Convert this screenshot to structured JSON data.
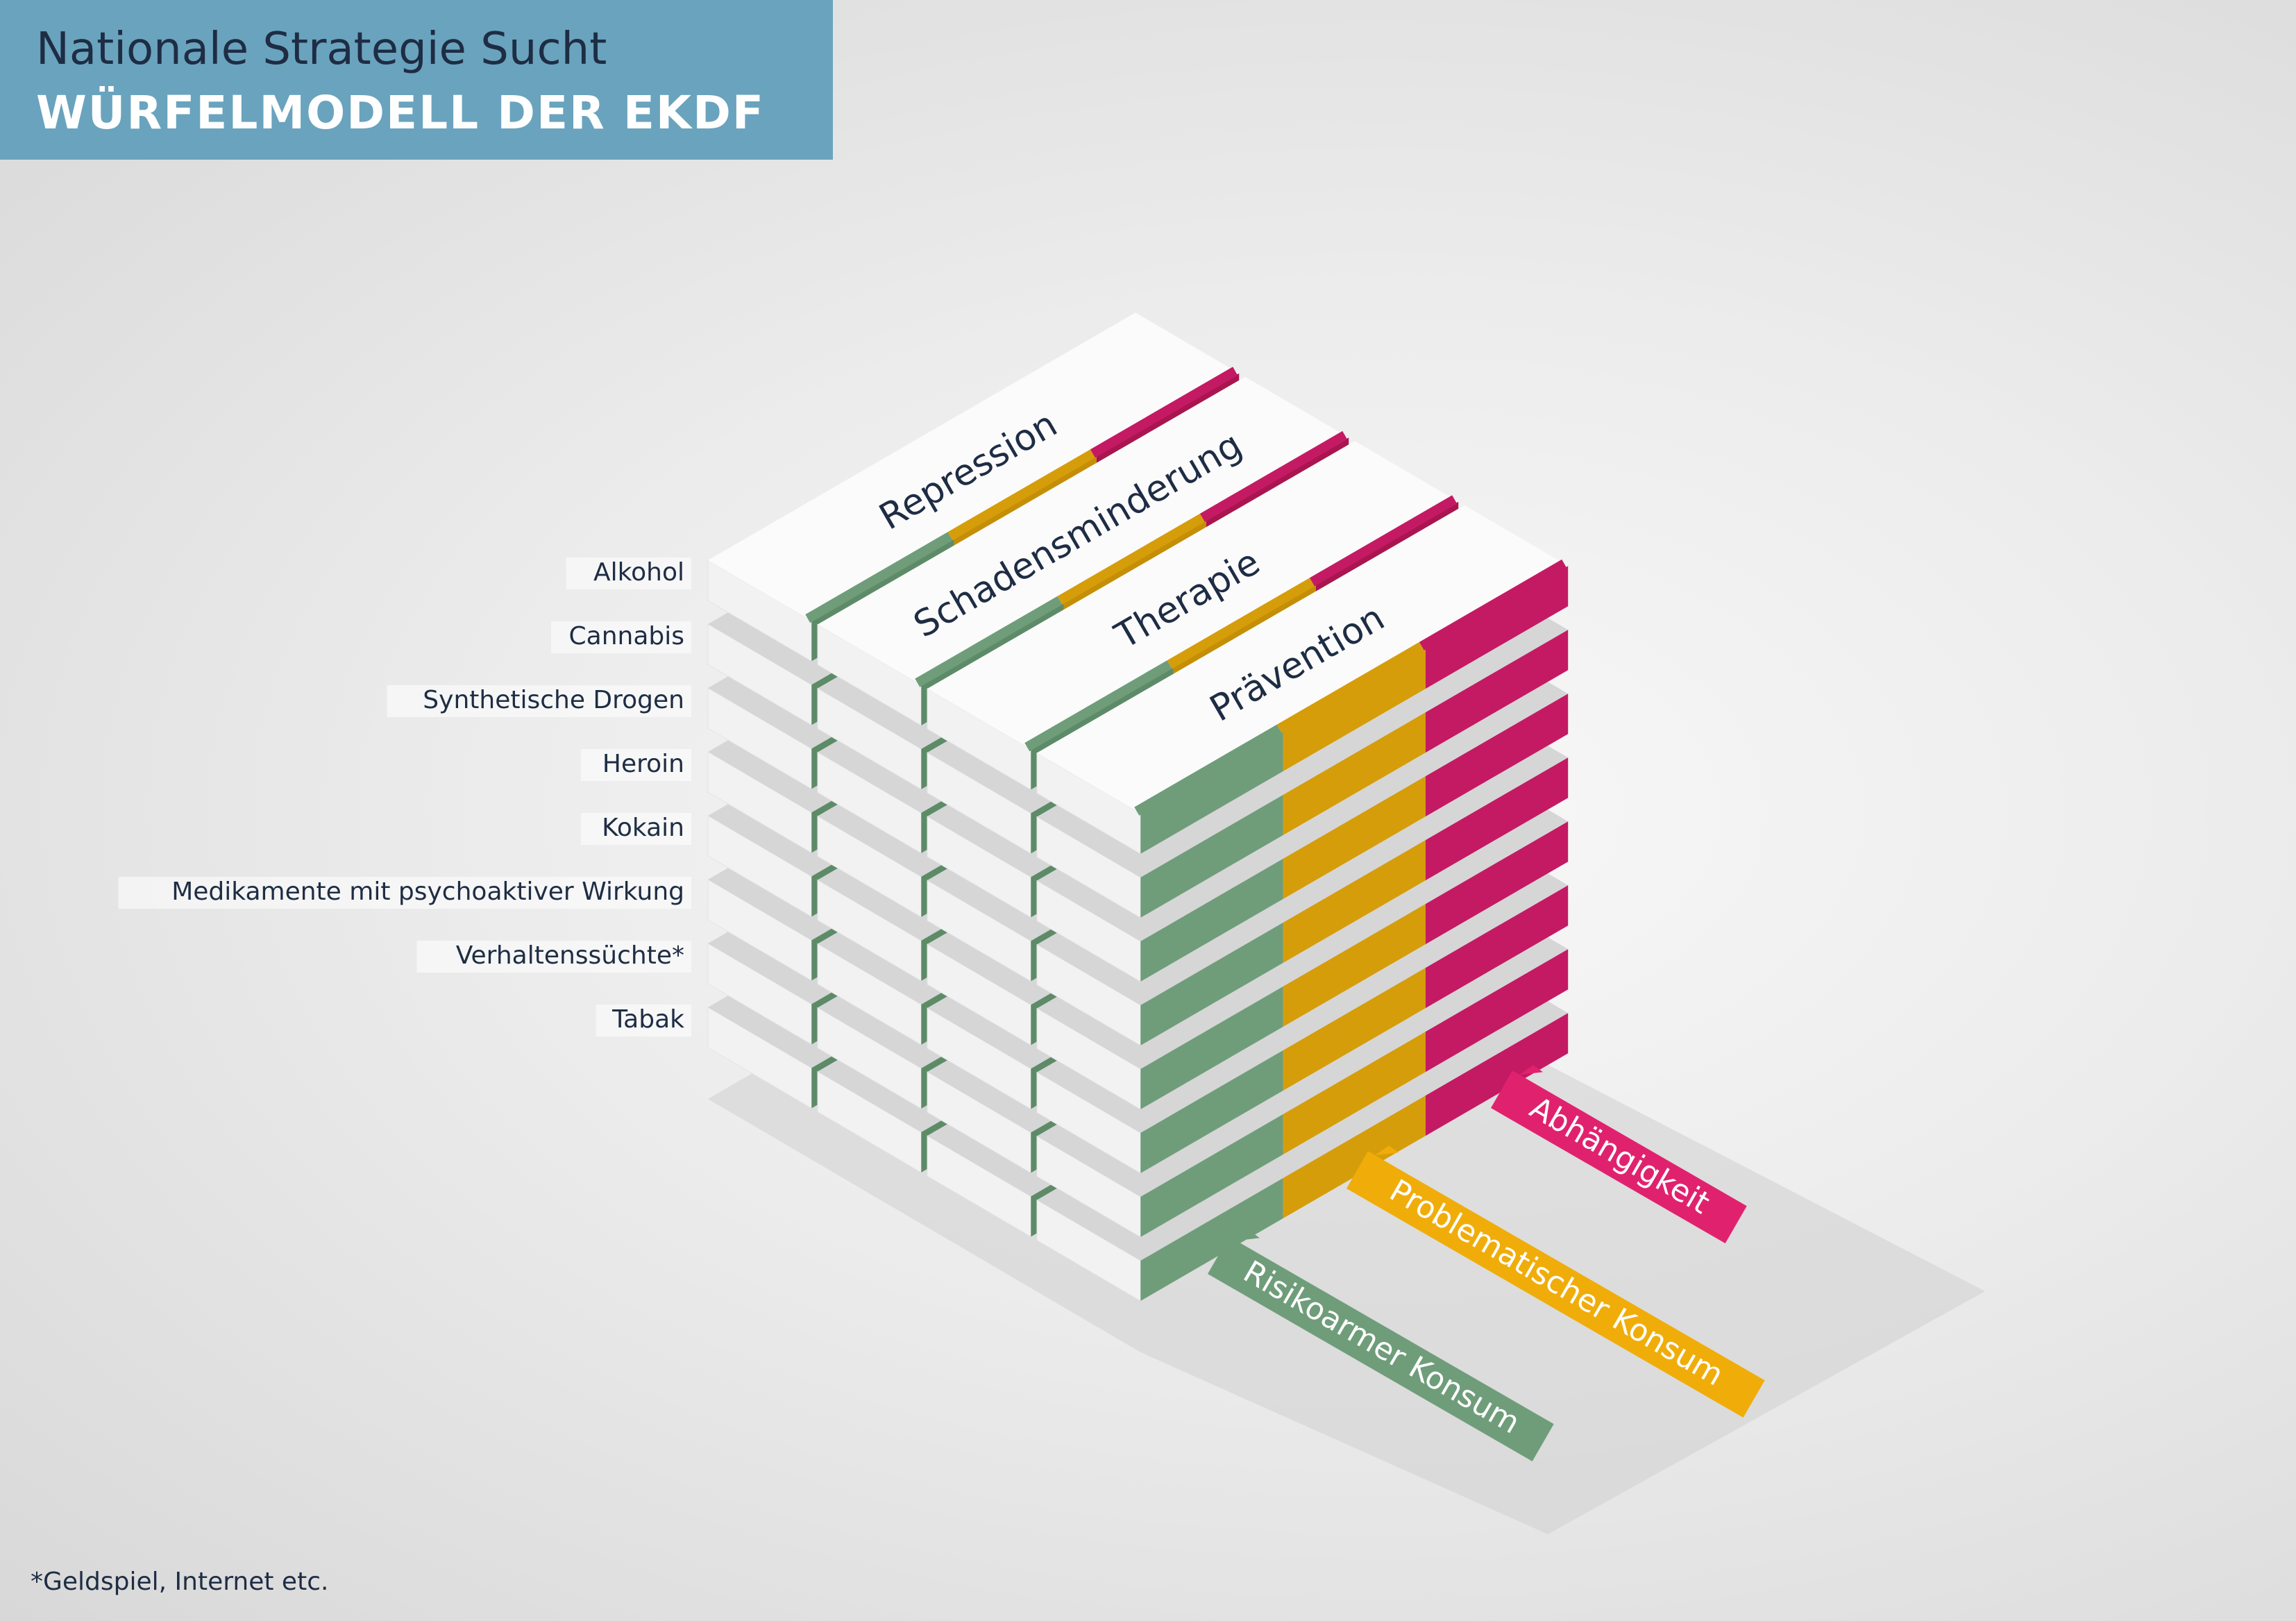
{
  "header": {
    "subtitle": "Nationale Strategie Sucht",
    "title": "WÜRFELMODELL DER EKDF"
  },
  "substances": [
    "Alkohol",
    "Cannabis",
    "Synthetische Drogen",
    "Heroin",
    "Kokain",
    "Medikamente mit psychoaktiver Wirkung",
    "Verhaltenssüchte*",
    "Tabak"
  ],
  "pillars": [
    "Repression",
    "Schadensminderung",
    "Therapie",
    "Prävention"
  ],
  "consumption_levels": [
    {
      "label": "Risikoarmer Konsum",
      "color": "#6f9d7a"
    },
    {
      "label": "Problematischer Konsum",
      "color": "#f0ad0a"
    },
    {
      "label": "Abhängigkeit",
      "color": "#e0226e"
    }
  ],
  "colors": {
    "green": "#6f9d7a",
    "yellow": "#d69d0a",
    "magenta": "#c41a63",
    "header_bg": "#6aa3bd"
  },
  "footnote": "*Geldspiel, Internet etc."
}
